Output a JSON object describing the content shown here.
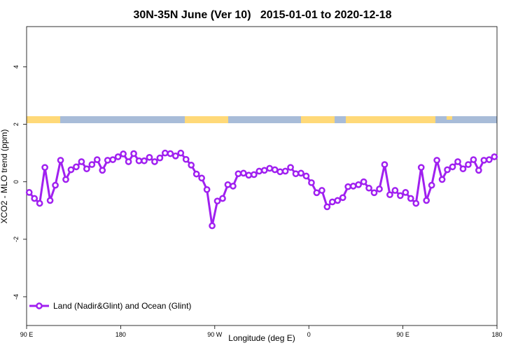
{
  "chart_data": {
    "type": "line",
    "title": "30N-35N June (Ver 10)   2015-01-01 to 2020-12-18",
    "xlabel": "Longitude (deg E)",
    "ylabel": "XCO2 - MLO trend (ppm)",
    "xlim": [
      90,
      540
    ],
    "ylim": [
      -5,
      5.4
    ],
    "xticks": [
      {
        "value": 90,
        "label": "90 E"
      },
      180,
      {
        "value": 270,
        "label": "90 W"
      },
      {
        "value": 360,
        "label": "0"
      },
      {
        "value": 450,
        "label": "90 E"
      },
      {
        "value": 540,
        "label": "180"
      }
    ],
    "yticks": [
      -4,
      -2,
      0,
      2,
      4
    ],
    "grid": false,
    "legend": "bottom-left",
    "x": [
      92.5,
      97.5,
      102.5,
      107.5,
      112.5,
      117.5,
      122.5,
      127.5,
      132.5,
      137.5,
      142.5,
      147.5,
      152.5,
      157.5,
      162.5,
      167.5,
      172.5,
      177.5,
      182.5,
      187.5,
      192.5,
      197.5,
      202.5,
      207.5,
      212.5,
      217.5,
      222.5,
      227.5,
      232.5,
      237.5,
      242.5,
      247.5,
      252.5,
      257.5,
      262.5,
      267.5,
      272.5,
      277.5,
      282.5,
      287.5,
      292.5,
      297.5,
      302.5,
      307.5,
      312.5,
      317.5,
      322.5,
      327.5,
      332.5,
      337.5,
      342.5,
      347.5,
      352.5,
      357.5,
      362.5,
      367.5,
      372.5,
      377.5,
      382.5,
      387.5,
      392.5,
      397.5,
      402.5,
      407.5,
      412.5,
      417.5,
      422.5,
      427.5,
      432.5,
      437.5,
      442.5,
      447.5,
      452.5,
      457.5,
      462.5,
      467.5,
      472.5,
      477.5,
      482.5,
      487.5,
      492.5,
      497.5,
      502.5,
      507.5,
      512.5,
      517.5,
      522.5,
      527.5,
      532.5,
      537.5
    ],
    "series": [
      {
        "name": "Land (Nadir&Glint) and Ocean (Glint)",
        "color": "#a020f0",
        "values": [
          -0.37,
          -0.58,
          -0.75,
          0.5,
          -0.65,
          -0.12,
          0.75,
          0.08,
          0.42,
          0.52,
          0.7,
          0.45,
          0.6,
          0.77,
          0.4,
          0.75,
          0.77,
          0.87,
          0.97,
          0.7,
          0.98,
          0.73,
          0.73,
          0.85,
          0.7,
          0.83,
          1.0,
          0.98,
          0.9,
          1.0,
          0.78,
          0.58,
          0.27,
          0.13,
          -0.27,
          -1.53,
          -0.67,
          -0.58,
          -0.1,
          -0.15,
          0.28,
          0.3,
          0.23,
          0.25,
          0.37,
          0.4,
          0.47,
          0.42,
          0.35,
          0.37,
          0.5,
          0.28,
          0.3,
          0.2,
          -0.03,
          -0.38,
          -0.3,
          -0.87,
          -0.7,
          -0.65,
          -0.55,
          -0.17,
          -0.15,
          -0.1,
          0.0,
          -0.22,
          -0.38,
          -0.25,
          0.6,
          -0.45,
          -0.3,
          -0.48,
          -0.37,
          -0.58,
          -0.75,
          0.5,
          -0.65,
          -0.12,
          0.75,
          0.08,
          0.42,
          0.52,
          0.7,
          0.45,
          0.6,
          0.77,
          0.4,
          0.75,
          0.77,
          0.87
        ]
      }
    ]
  }
}
